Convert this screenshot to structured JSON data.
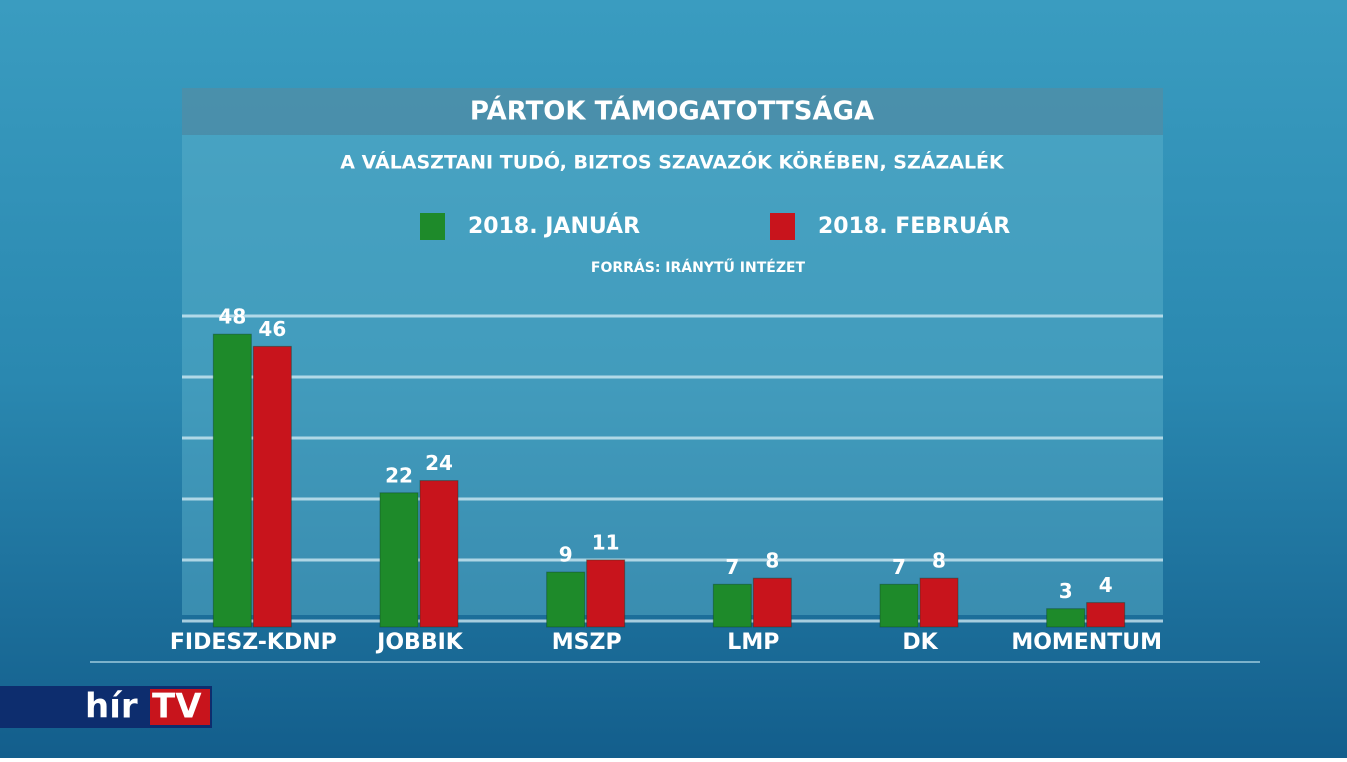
{
  "chart_data": {
    "type": "bar",
    "title": "PÁRTOK TÁMOGATOTTSÁGA",
    "subtitle": "A VÁLASZTANI TUDÓ, BIZTOS SZAVAZÓK KÖRÉBEN, SZÁZALÉK",
    "source": "FORRÁS: IRÁNYTŰ INTÉZET",
    "categories": [
      "FIDESZ-KDNP",
      "JOBBIK",
      "MSZP",
      "LMP",
      "DK",
      "MOMENTUM"
    ],
    "series": [
      {
        "name": "2018. JANUÁR",
        "color": "#1e8a2a",
        "values": [
          48,
          22,
          9,
          7,
          7,
          3
        ]
      },
      {
        "name": "2018. FEBRUÁR",
        "color": "#c8141c",
        "values": [
          46,
          24,
          11,
          8,
          8,
          4
        ]
      }
    ],
    "ylim": [
      0,
      50
    ],
    "yticks": [
      0,
      10,
      20,
      30,
      40,
      50
    ],
    "grid": true,
    "tick_labels": false
  },
  "channel_logo": {
    "left": "hír",
    "right": "TV"
  }
}
